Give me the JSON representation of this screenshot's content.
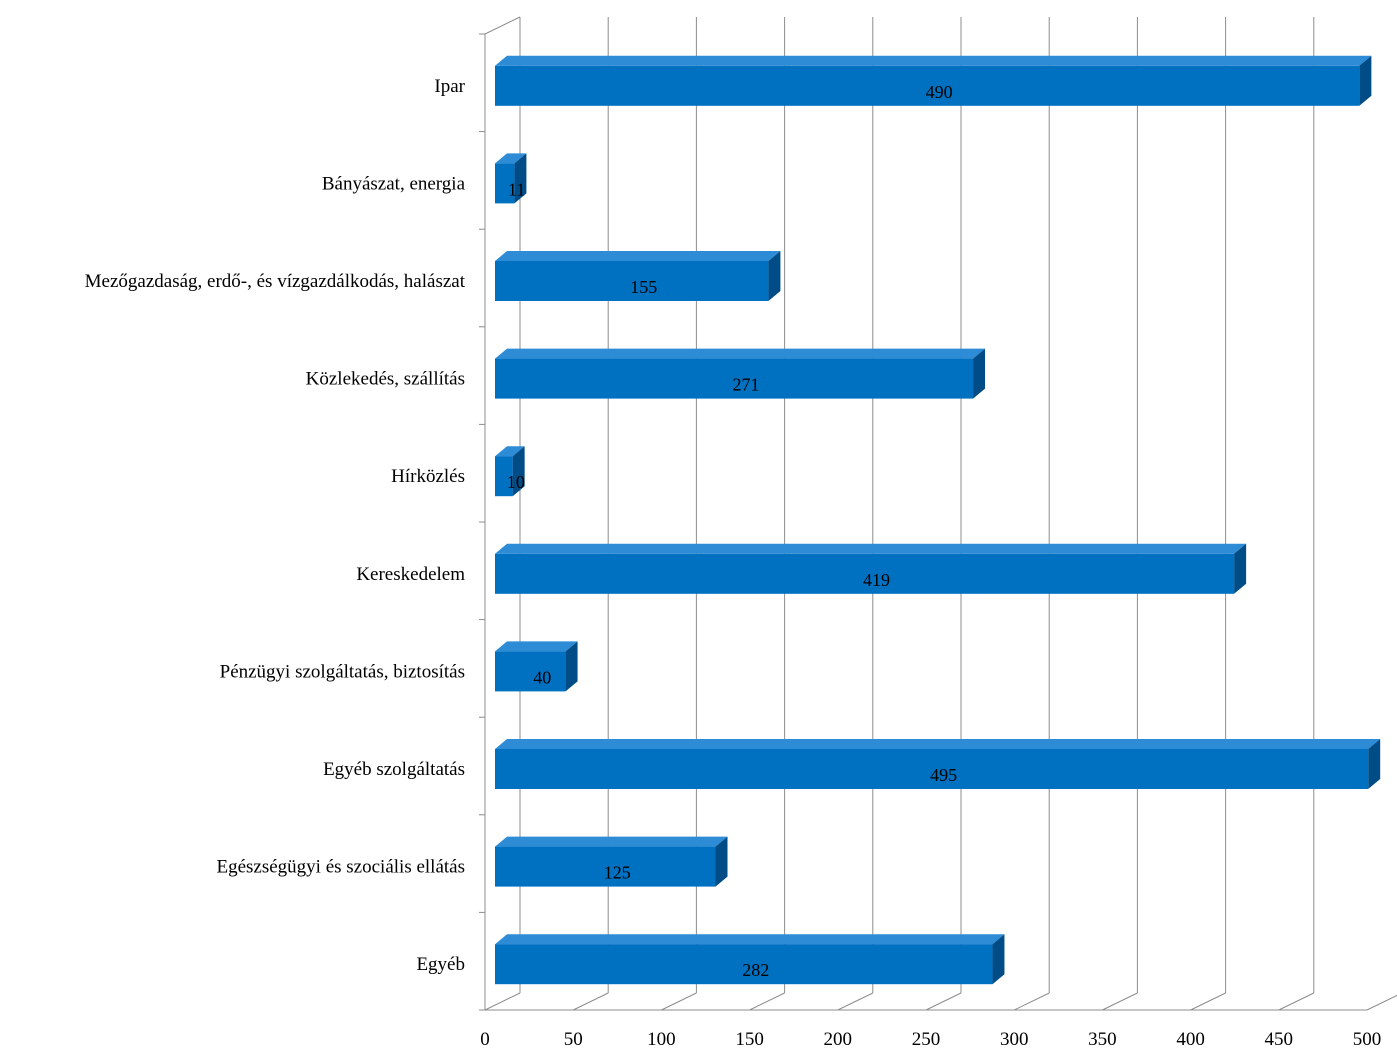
{
  "chart_data": {
    "type": "bar",
    "orientation": "horizontal",
    "three_d": true,
    "categories": [
      "Ipar",
      "Bányászat, energia",
      "Mezőgazdaság, erdő-, és vízgazdálkodás, halászat",
      "Közlekedés, szállítás",
      "Hírközlés",
      "Kereskedelem",
      "Pénzügyi szolgáltatás, biztosítás",
      "Egyéb szolgáltatás",
      "Egészségügyi és szociális ellátás",
      "Egyéb"
    ],
    "values": [
      490,
      11,
      155,
      271,
      10,
      419,
      40,
      495,
      125,
      282
    ],
    "xlim": [
      0,
      500
    ],
    "xticks": [
      0,
      50,
      100,
      150,
      200,
      250,
      300,
      350,
      400,
      450,
      500
    ],
    "grid": true,
    "legend": "none",
    "colors": {
      "bar_front": "#0070C0",
      "bar_top": "#2E8BD6",
      "bar_side": "#004C86",
      "grid": "#8C8C8C"
    }
  }
}
